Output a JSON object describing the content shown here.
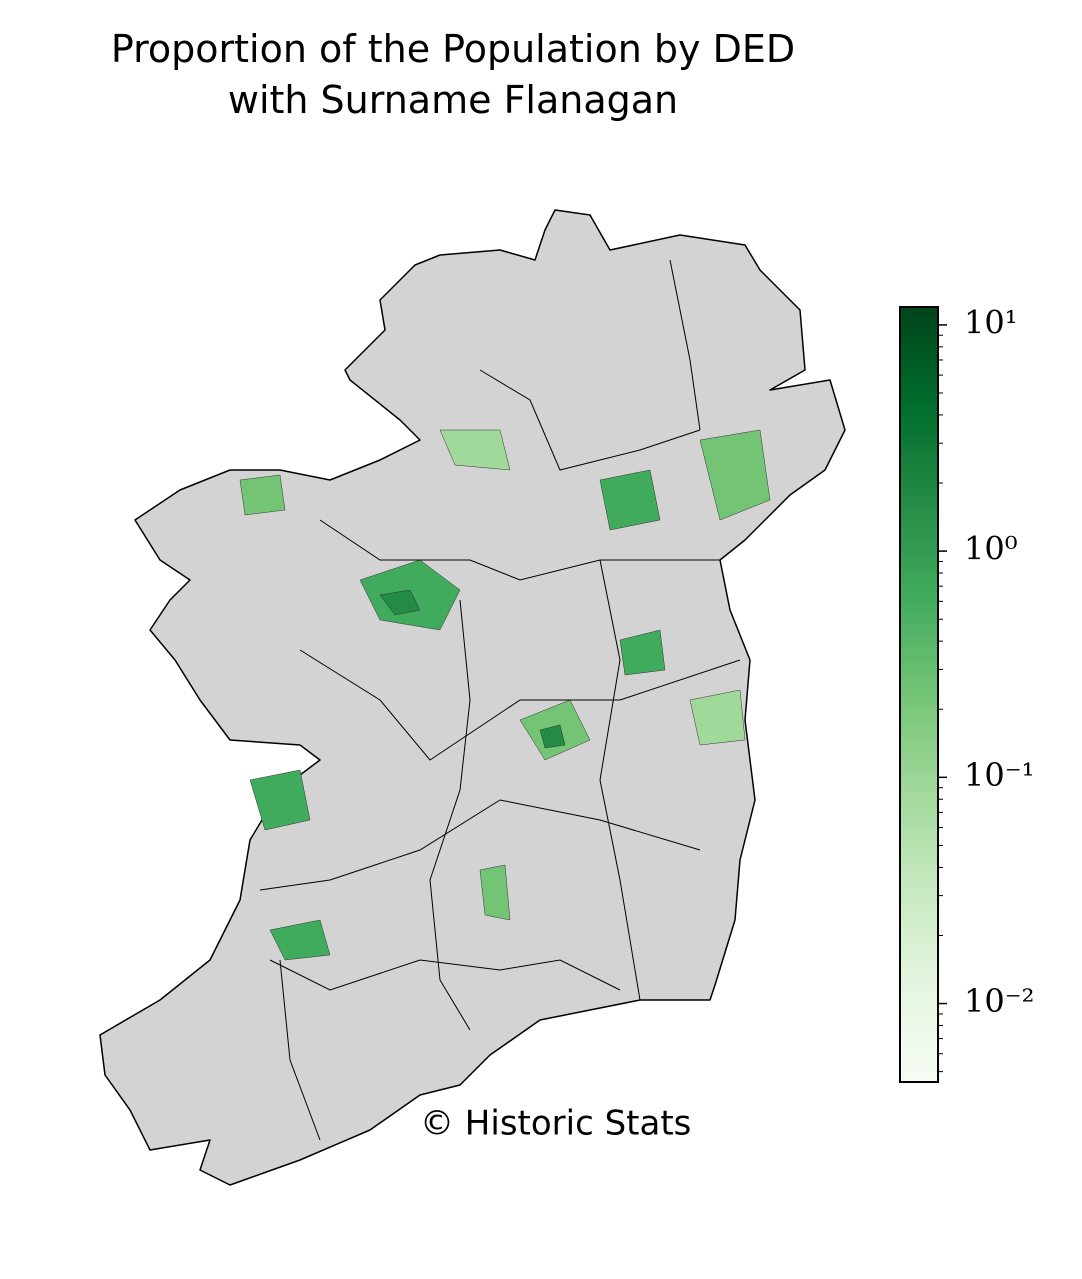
{
  "map": {
    "title": [
      "Proportion of the Population by DED",
      "with Surname Flanagan"
    ],
    "credit": "© Historic Stats",
    "colorbar": {
      "scale": "log",
      "lim": [
        0.0045,
        12
      ],
      "ticks": [
        {
          "value": 10,
          "label": "10¹"
        },
        {
          "value": 1,
          "label": "10⁰"
        },
        {
          "value": 0.1,
          "label": "10⁻¹"
        },
        {
          "value": 0.01,
          "label": "10⁻²"
        }
      ],
      "colors": [
        "#f7fcf5",
        "#e5f5e0",
        "#c7e9c0",
        "#a1d99b",
        "#74c476",
        "#41ab5d",
        "#238b45",
        "#006d2c",
        "#00441b"
      ]
    }
  }
}
